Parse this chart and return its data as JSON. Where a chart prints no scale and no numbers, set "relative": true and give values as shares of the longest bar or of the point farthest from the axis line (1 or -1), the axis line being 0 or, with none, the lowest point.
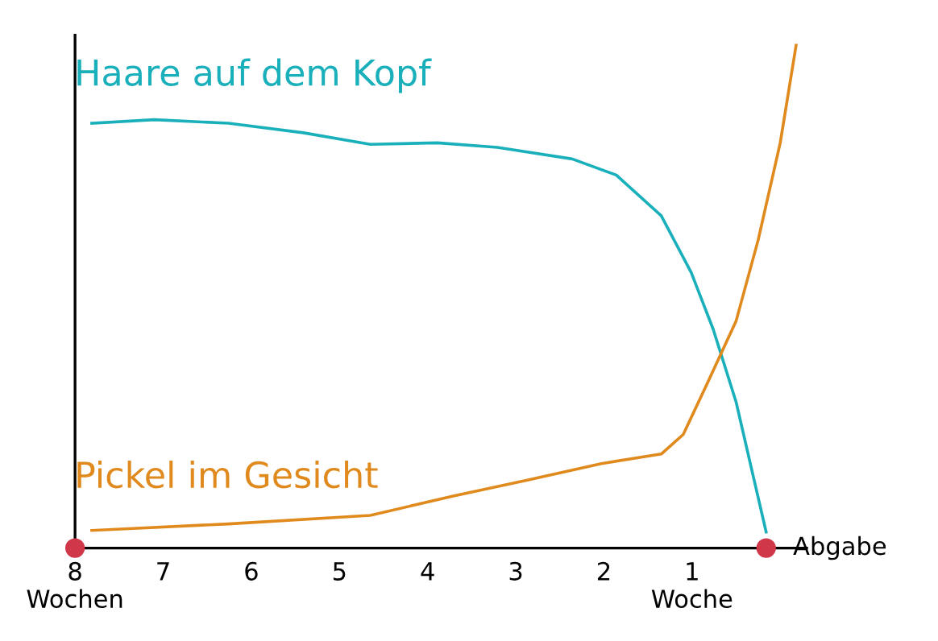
{
  "chart_data": {
    "type": "line",
    "relative": true,
    "xlim": [
      8,
      -0.3
    ],
    "xticks": [
      {
        "value": 8,
        "label": "8\nWochen"
      },
      7,
      6,
      5,
      4,
      3,
      2,
      {
        "value": 1,
        "label": "1\nWoche"
      }
    ],
    "annotations": [
      {
        "text": "Abgabe",
        "x": 0.16,
        "y": 0
      }
    ],
    "grid": false,
    "legend": false,
    "marker": "none",
    "line_style": "solid",
    "series": [
      {
        "name": "Haare auf dem Kopf",
        "color": "#1ab0bb",
        "x": [
          7.81,
          7.1,
          6.26,
          5.41,
          4.65,
          3.89,
          3.21,
          2.36,
          1.86,
          1.35,
          1.01,
          0.76,
          0.5,
          0.33,
          0.16
        ],
        "values": [
          0.845,
          0.852,
          0.845,
          0.826,
          0.803,
          0.806,
          0.797,
          0.774,
          0.742,
          0.661,
          0.548,
          0.435,
          0.29,
          0.161,
          0.032
        ]
      },
      {
        "name": "Pickel im Gesicht",
        "color": "#e08a1e",
        "x": [
          7.81,
          6.26,
          4.65,
          3.72,
          2.87,
          2.03,
          1.35,
          1.1,
          0.84,
          0.5,
          0.25,
          0.0,
          -0.18
        ],
        "values": [
          0.035,
          0.048,
          0.065,
          0.103,
          0.135,
          0.168,
          0.187,
          0.226,
          0.323,
          0.452,
          0.613,
          0.806,
          1.0
        ]
      },
      {
        "type": "scatter",
        "color": "#d0384a",
        "marker": "circle",
        "x": [
          8,
          0.16
        ],
        "values": [
          0,
          0
        ]
      }
    ]
  }
}
